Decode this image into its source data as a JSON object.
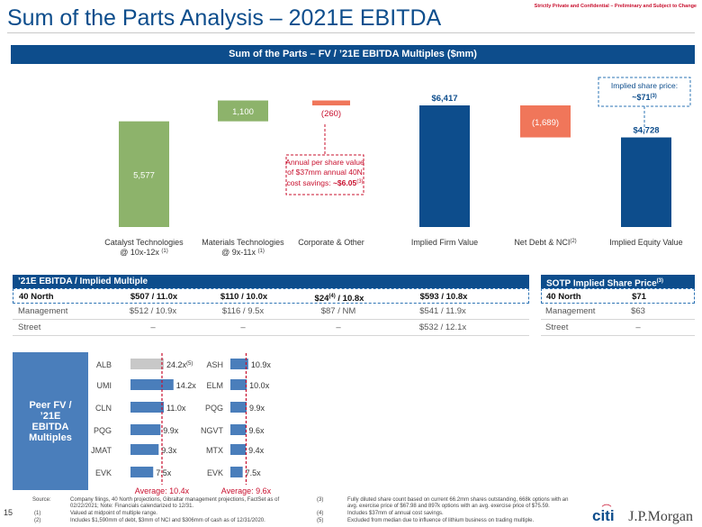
{
  "header": {
    "title": "Sum of the Parts Analysis – 2021E EBITDA",
    "confidential": "Strictly Private and Confidential – Preliminary and Subject to Change"
  },
  "banner": "Sum of the Parts – FV / ’21E EBITDA Multiples ($mm)",
  "chart_data": [
    {
      "type": "bar",
      "subtype": "waterfall",
      "categories": [
        "Catalyst Technologies @ 10x-12x (1)",
        "Materials Technologies @ 9x-11x(1)",
        "Corporate & Other",
        "Implied Firm Value",
        "Net Debt & NCI(2)",
        "Implied Equity Value"
      ],
      "values": [
        5577,
        1100,
        -260,
        6417,
        -1689,
        4728
      ],
      "labels": [
        "5,577",
        "1,100",
        "(260)",
        "$6,417",
        "(1,689)",
        "$4,728"
      ],
      "colors": [
        "#8db36b",
        "#8db36b",
        "#f0765a",
        "#0d4d8c",
        "#f0765a",
        "#0d4d8c"
      ],
      "annotations": {
        "cost_savings_lines": [
          "Annual per share value",
          "of $37mm annual 40N",
          "cost savings:"
        ],
        "cost_savings_value": "~$6.05",
        "cost_savings_note": "(3)",
        "implied_price_line1": "Implied share price:",
        "implied_price_value": "~$71",
        "implied_price_note": "(3)"
      }
    },
    {
      "type": "bar",
      "orientation": "horizontal",
      "categories": [
        "ALB",
        "UMI",
        "CLN",
        "PQG",
        "JMAT",
        "EVK"
      ],
      "values": [
        24.2,
        14.2,
        11.0,
        9.9,
        9.3,
        7.5
      ],
      "labels": [
        "24.2x",
        "14.2x",
        "11.0x",
        "9.9x",
        "9.3x",
        "7.5x"
      ],
      "footnotes": [
        "(5)",
        "",
        "",
        "",
        "",
        ""
      ],
      "average": 10.4,
      "average_label": "Average: 10.4x"
    },
    {
      "type": "bar",
      "orientation": "horizontal",
      "categories": [
        "ASH",
        "ELM",
        "PQG",
        "NGVT",
        "MTX",
        "EVK"
      ],
      "values": [
        10.9,
        10.0,
        9.9,
        9.6,
        9.4,
        7.5
      ],
      "labels": [
        "10.9x",
        "10.0x",
        "9.9x",
        "9.6x",
        "9.4x",
        "7.5x"
      ],
      "average": 9.6,
      "average_label": "Average: 9.6x"
    }
  ],
  "ebitda_table": {
    "header": "’21E EBITDA / Implied Multiple",
    "rows": [
      {
        "label": "40 North",
        "c1": "$507 / 11.0x",
        "c2": "$110 / 10.0x",
        "c3a": "$24",
        "c3sup": "(4)",
        "c3b": " / 10.8x",
        "c4": "$593 / 10.8x"
      },
      {
        "label": "Management",
        "c1": "$512 / 10.9x",
        "c2": "$116 / 9.5x",
        "c3": "$87 / NM",
        "c4": "$541 / 11.9x"
      },
      {
        "label": "Street",
        "c1": "–",
        "c2": "–",
        "c3": "–",
        "c4": "$532 / 12.1x"
      }
    ]
  },
  "sotp_table": {
    "header": "SOTP Implied Share Price",
    "header_note": "(3)",
    "rows": [
      {
        "label": "40 North",
        "value": "$71"
      },
      {
        "label": "Management",
        "value": "$63"
      },
      {
        "label": "Street",
        "value": "–"
      }
    ]
  },
  "peer_box": [
    "Peer FV /",
    "’21E",
    "EBITDA",
    "Multiples"
  ],
  "footnotes": {
    "page_number": "15",
    "source_label": "Source:",
    "source_lines": [
      "Company filings, 40 North projections, Gibraltar management projections, FactSet as of",
      "02/22/2021; Note: Financials calendarized to 12/31."
    ],
    "n1_mark": "(1)",
    "n1": "Valued at midpoint of multiple range.",
    "n2_mark": "(2)",
    "n2": "Includes $1,590mm of debt, $3mm of NCI and $306mm of cash as of 12/31/2020.",
    "n3_mark": "(3)",
    "n3_lines": [
      "Fully diluted share count based on current 66.2mm shares outstanding, 668k options with an",
      "avg. exercise price of $67.98 and 897k options with an avg. exercise price of $75.59."
    ],
    "n4_mark": "(4)",
    "n4": "Includes $37mm of annual cost savings.",
    "n5_mark": "(5)",
    "n5": "Excluded from median due to influence of lithium business on trading multiple."
  },
  "logo": {
    "citi": "citi",
    "jpm": "J.P.Morgan"
  }
}
